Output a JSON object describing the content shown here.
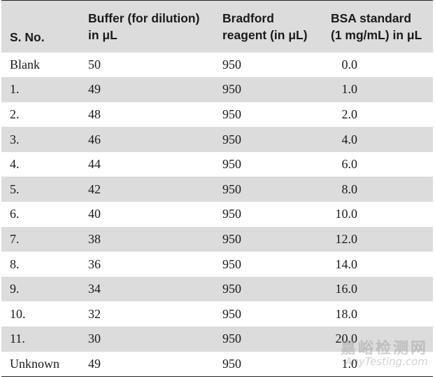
{
  "table": {
    "headers": [
      "S. No.",
      "Buffer (for dilution)\nin μL",
      "Bradford\nreagent (in μL)",
      "BSA standard\n(1 mg/mL) in μL"
    ],
    "rows": [
      [
        "Blank",
        "50",
        "950",
        "0.0"
      ],
      [
        "1.",
        "49",
        "950",
        "1.0"
      ],
      [
        "2.",
        "48",
        "950",
        "2.0"
      ],
      [
        "3.",
        "46",
        "950",
        "4.0"
      ],
      [
        "4.",
        "44",
        "950",
        "6.0"
      ],
      [
        "5.",
        "42",
        "950",
        "8.0"
      ],
      [
        "6.",
        "40",
        "950",
        "10.0"
      ],
      [
        "7.",
        "38",
        "950",
        "12.0"
      ],
      [
        "8.",
        "36",
        "950",
        "14.0"
      ],
      [
        "9.",
        "34",
        "950",
        "16.0"
      ],
      [
        "10.",
        "32",
        "950",
        "18.0"
      ],
      [
        "11.",
        "30",
        "950",
        "20.0"
      ],
      [
        "Unknown",
        "49",
        "950",
        "1.0"
      ]
    ]
  },
  "watermark": {
    "chinese": "嘉峪检测网",
    "english": "AnyTesting.com"
  }
}
